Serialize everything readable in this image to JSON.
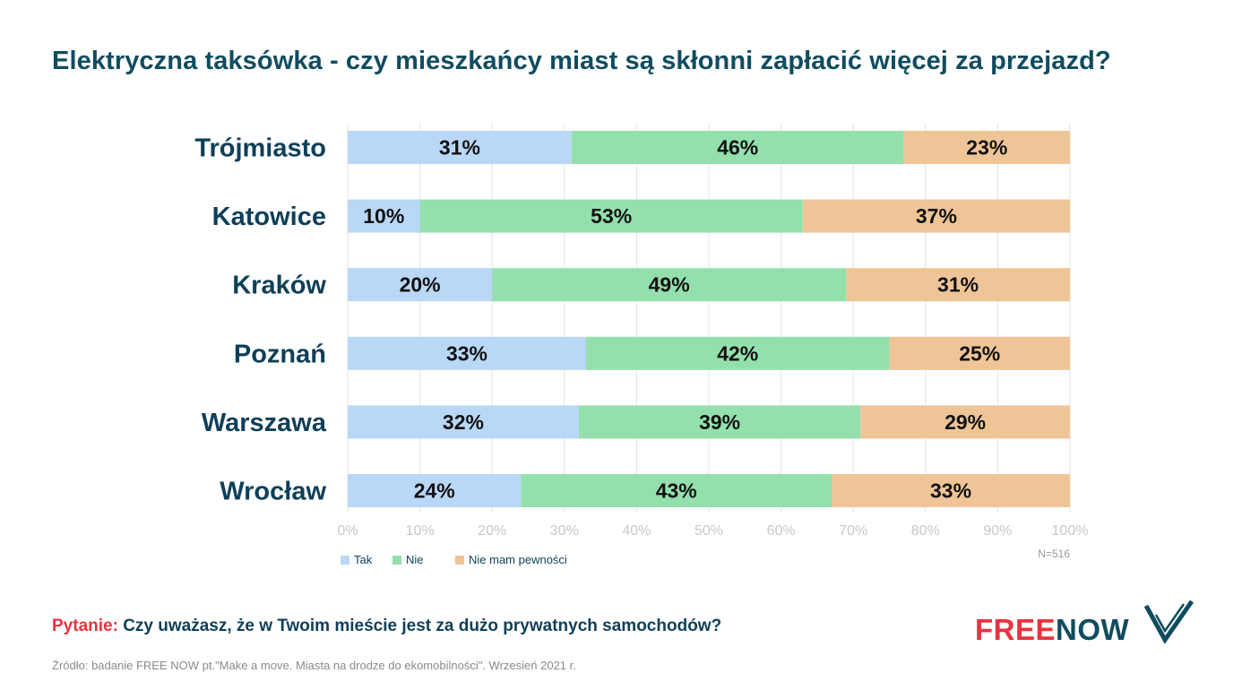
{
  "title": "Elektryczna taksówka - czy mieszkańcy miast są skłonni zapłacić więcej za przejazd?",
  "chart_data": {
    "type": "bar",
    "orientation": "horizontal",
    "stacked": true,
    "categories": [
      "Trójmiasto",
      "Katowice",
      "Kraków",
      "Poznań",
      "Warszawa",
      "Wrocław"
    ],
    "series": [
      {
        "name": "Tak",
        "color": "#b9d7f7",
        "values": [
          31,
          10,
          20,
          33,
          32,
          24
        ]
      },
      {
        "name": "Nie",
        "color": "#93e0ac",
        "values": [
          46,
          53,
          49,
          42,
          39,
          43
        ]
      },
      {
        "name": "Nie mam pewności",
        "color": "#efc597",
        "values": [
          23,
          37,
          31,
          25,
          29,
          33
        ]
      }
    ],
    "xlim": [
      0,
      100
    ],
    "x_ticks": [
      "0%",
      "10%",
      "20%",
      "30%",
      "40%",
      "50%",
      "60%",
      "70%",
      "80%",
      "90%",
      "100%"
    ],
    "value_suffix": "%",
    "grid": true,
    "legend_position": "bottom-left",
    "sample_size": "N=516"
  },
  "question": {
    "label": "Pytanie:",
    "text": "Czy uważasz, że w Twoim mieście jest za dużo prywatnych samochodów?"
  },
  "source": "Źródło: badanie FREE NOW pt.\"Make a move. Miasta na drodze do ekomobilności\". Wrzesień 2021 r.",
  "logo": {
    "part1": "FREE",
    "part2": "NOW"
  }
}
